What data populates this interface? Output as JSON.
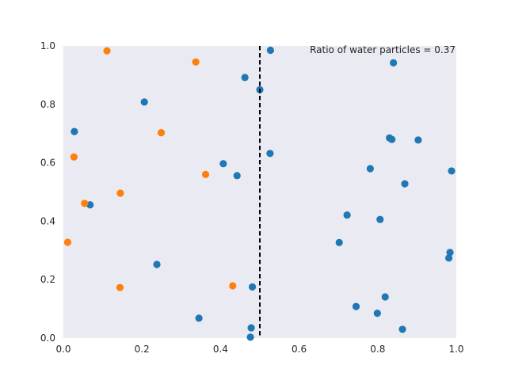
{
  "chart_data": {
    "type": "scatter",
    "title": "",
    "xlabel": "",
    "ylabel": "",
    "xlim": [
      0.0,
      1.0
    ],
    "ylim": [
      0.0,
      1.0
    ],
    "grid": false,
    "background_color": "#eaeaf2",
    "x_ticks": [
      "0.0",
      "0.2",
      "0.4",
      "0.6",
      "0.8",
      "1.0"
    ],
    "y_ticks": [
      "0.0",
      "0.2",
      "0.4",
      "0.6",
      "0.8",
      "1.0"
    ],
    "annotation": "Ratio of water particles = 0.37",
    "divider": {
      "x": 0.5,
      "style": "dashed",
      "color": "#000000"
    },
    "series": [
      {
        "color": "#1f77b4",
        "points": [
          [
            0.527,
            0.985
          ],
          [
            0.84,
            0.942
          ],
          [
            0.462,
            0.892
          ],
          [
            0.5,
            0.85
          ],
          [
            0.206,
            0.808
          ],
          [
            0.028,
            0.707
          ],
          [
            0.83,
            0.685
          ],
          [
            0.836,
            0.68
          ],
          [
            0.903,
            0.678
          ],
          [
            0.526,
            0.632
          ],
          [
            0.407,
            0.597
          ],
          [
            0.781,
            0.58
          ],
          [
            0.988,
            0.572
          ],
          [
            0.442,
            0.556
          ],
          [
            0.869,
            0.528
          ],
          [
            0.068,
            0.456
          ],
          [
            0.722,
            0.421
          ],
          [
            0.806,
            0.406
          ],
          [
            0.702,
            0.327
          ],
          [
            0.984,
            0.293
          ],
          [
            0.981,
            0.274
          ],
          [
            0.238,
            0.252
          ],
          [
            0.481,
            0.175
          ],
          [
            0.819,
            0.141
          ],
          [
            0.745,
            0.108
          ],
          [
            0.799,
            0.085
          ],
          [
            0.345,
            0.068
          ],
          [
            0.478,
            0.035
          ],
          [
            0.863,
            0.03
          ],
          [
            0.476,
            0.003
          ]
        ]
      },
      {
        "color": "#ff7f0e",
        "points": [
          [
            0.111,
            0.983
          ],
          [
            0.337,
            0.945
          ],
          [
            0.249,
            0.703
          ],
          [
            0.027,
            0.62
          ],
          [
            0.362,
            0.56
          ],
          [
            0.145,
            0.496
          ],
          [
            0.054,
            0.461
          ],
          [
            0.011,
            0.328
          ],
          [
            0.431,
            0.179
          ],
          [
            0.144,
            0.173
          ]
        ]
      }
    ]
  }
}
